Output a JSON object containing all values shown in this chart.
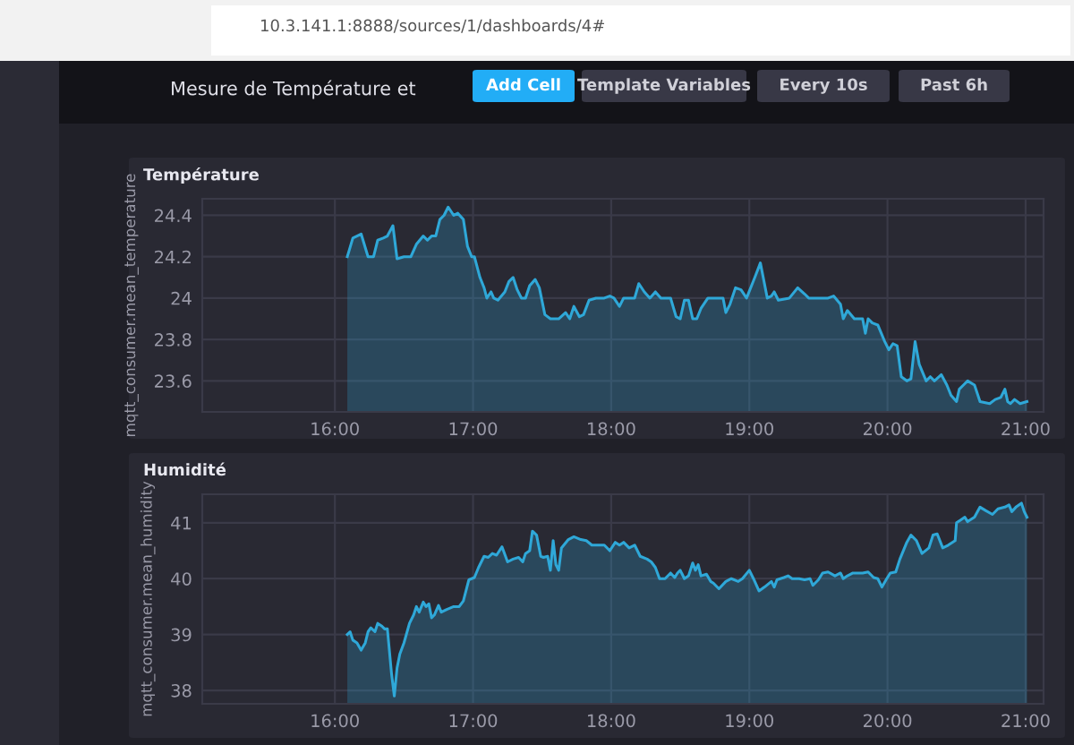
{
  "chart_data": [
    {
      "type": "other",
      "title": "Mesure de Température et",
      "annotations": [
        "10.3.141.1:8888/sources/1/dashboards/4#",
        "Add Cell",
        "Template Variables",
        "Every 10s",
        "Past 6h"
      ]
    },
    {
      "type": "area",
      "title": "Température",
      "ylabel": "mqtt_consumer.mean_temperature",
      "xlim": [
        15.04,
        21.13
      ],
      "ylim": [
        23.45,
        24.48
      ],
      "xticks": [
        {
          "value": 16,
          "label": "16:00"
        },
        {
          "value": 17,
          "label": "17:00"
        },
        {
          "value": 18,
          "label": "18:00"
        },
        {
          "value": 19,
          "label": "19:00"
        },
        {
          "value": 20,
          "label": "20:00"
        },
        {
          "value": 21,
          "label": "21:00"
        }
      ],
      "yticks": [
        23.6,
        23.8,
        24,
        24.2,
        24.4
      ],
      "grid": true,
      "legend": false,
      "marker": "none",
      "line_style": "solid",
      "series": [
        {
          "color": "#2fa8d8",
          "x": [
            16.09,
            16.13,
            16.16,
            16.19,
            16.24,
            16.28,
            16.31,
            16.35,
            16.38,
            16.42,
            16.45,
            16.5,
            16.55,
            16.59,
            16.64,
            16.67,
            16.7,
            16.73,
            16.76,
            16.79,
            16.82,
            16.86,
            16.89,
            16.93,
            16.96,
            16.99,
            17.01,
            17.05,
            17.08,
            17.1,
            17.13,
            17.15,
            17.18,
            17.23,
            17.26,
            17.29,
            17.32,
            17.35,
            17.38,
            17.41,
            17.45,
            17.48,
            17.52,
            17.56,
            17.62,
            17.67,
            17.7,
            17.73,
            17.77,
            17.8,
            17.84,
            17.89,
            17.95,
            17.99,
            18.02,
            18.06,
            18.09,
            18.17,
            18.2,
            18.24,
            18.28,
            18.32,
            18.36,
            18.43,
            18.47,
            18.5,
            18.53,
            18.56,
            18.59,
            18.62,
            18.65,
            18.7,
            18.81,
            18.83,
            18.86,
            18.9,
            18.94,
            18.98,
            19.04,
            19.08,
            19.13,
            19.16,
            19.18,
            19.21,
            19.29,
            19.35,
            19.4,
            19.43,
            19.57,
            19.61,
            19.66,
            19.68,
            19.71,
            19.76,
            19.82,
            19.84,
            19.86,
            19.89,
            19.93,
            19.98,
            20.01,
            20.04,
            20.07,
            20.1,
            20.14,
            20.17,
            20.2,
            20.23,
            20.28,
            20.31,
            20.34,
            20.39,
            20.43,
            20.46,
            20.5,
            20.52,
            20.55,
            20.58,
            20.63,
            20.67,
            20.74,
            20.78,
            20.82,
            20.85,
            20.87,
            20.89,
            20.92,
            20.96,
            21.01
          ],
          "values": [
            24.2,
            24.29,
            24.3,
            24.31,
            24.2,
            24.2,
            24.28,
            24.29,
            24.3,
            24.35,
            24.19,
            24.2,
            24.2,
            24.26,
            24.3,
            24.28,
            24.3,
            24.3,
            24.38,
            24.4,
            24.44,
            24.4,
            24.41,
            24.38,
            24.25,
            24.2,
            24.2,
            24.1,
            24.05,
            24.0,
            24.03,
            24.0,
            23.99,
            24.03,
            24.08,
            24.1,
            24.04,
            24.0,
            24.0,
            24.06,
            24.09,
            24.05,
            23.92,
            23.9,
            23.9,
            23.93,
            23.9,
            23.96,
            23.91,
            23.92,
            23.99,
            24.0,
            24.0,
            24.01,
            24.0,
            23.96,
            24.0,
            24.0,
            24.07,
            24.03,
            24.0,
            24.03,
            24.0,
            24.0,
            23.91,
            23.9,
            23.99,
            23.99,
            23.9,
            23.9,
            23.95,
            24.0,
            24.0,
            23.93,
            23.97,
            24.05,
            24.04,
            24.0,
            24.1,
            24.17,
            24.0,
            24.01,
            24.03,
            23.99,
            24.0,
            24.05,
            24.02,
            24.0,
            24.0,
            24.01,
            23.97,
            23.9,
            23.94,
            23.9,
            23.9,
            23.83,
            23.9,
            23.88,
            23.87,
            23.79,
            23.75,
            23.78,
            23.77,
            23.62,
            23.6,
            23.61,
            23.79,
            23.68,
            23.6,
            23.62,
            23.6,
            23.63,
            23.58,
            23.53,
            23.5,
            23.56,
            23.58,
            23.6,
            23.58,
            23.5,
            23.49,
            23.51,
            23.52,
            23.56,
            23.5,
            23.49,
            23.51,
            23.49,
            23.5
          ]
        }
      ]
    },
    {
      "type": "area",
      "title": "Humidité",
      "ylabel": "mqtt_consumer.mean_humidity",
      "xlim": [
        15.04,
        21.13
      ],
      "ylim": [
        37.76,
        41.51
      ],
      "xticks": [
        {
          "value": 16,
          "label": "16:00"
        },
        {
          "value": 17,
          "label": "17:00"
        },
        {
          "value": 18,
          "label": "18:00"
        },
        {
          "value": 19,
          "label": "19:00"
        },
        {
          "value": 20,
          "label": "20:00"
        },
        {
          "value": 21,
          "label": "21:00"
        }
      ],
      "yticks": [
        38,
        39,
        40,
        41
      ],
      "grid": true,
      "legend": false,
      "marker": "none",
      "line_style": "solid",
      "series": [
        {
          "color": "#2fa8d8",
          "x": [
            16.09,
            16.11,
            16.13,
            16.16,
            16.19,
            16.22,
            16.24,
            16.26,
            16.29,
            16.31,
            16.34,
            16.36,
            16.38,
            16.41,
            16.43,
            16.45,
            16.47,
            16.5,
            16.54,
            16.57,
            16.59,
            16.61,
            16.64,
            16.66,
            16.68,
            16.7,
            16.72,
            16.75,
            16.77,
            16.81,
            16.86,
            16.9,
            16.93,
            16.97,
            17.01,
            17.04,
            17.08,
            17.11,
            17.14,
            17.17,
            17.21,
            17.25,
            17.29,
            17.33,
            17.36,
            17.38,
            17.41,
            17.43,
            17.46,
            17.49,
            17.51,
            17.54,
            17.56,
            17.58,
            17.6,
            17.62,
            17.64,
            17.69,
            17.73,
            17.78,
            17.82,
            17.86,
            17.91,
            17.95,
            17.99,
            18.03,
            18.06,
            18.09,
            18.13,
            18.17,
            18.21,
            18.26,
            18.29,
            18.32,
            18.35,
            18.39,
            18.43,
            18.46,
            18.48,
            18.5,
            18.53,
            18.56,
            18.59,
            18.61,
            18.63,
            18.65,
            18.69,
            18.72,
            18.74,
            18.78,
            18.83,
            18.87,
            18.92,
            18.95,
            19.0,
            19.03,
            19.07,
            19.11,
            19.16,
            19.18,
            19.2,
            19.25,
            19.28,
            19.31,
            19.36,
            19.4,
            19.44,
            19.46,
            19.5,
            19.53,
            19.57,
            19.62,
            19.66,
            19.68,
            19.71,
            19.75,
            19.82,
            19.86,
            19.9,
            19.93,
            19.96,
            19.99,
            20.02,
            20.06,
            20.09,
            20.14,
            20.17,
            20.21,
            20.25,
            20.3,
            20.33,
            20.36,
            20.4,
            20.44,
            20.49,
            20.5,
            20.53,
            20.56,
            20.58,
            20.63,
            20.67,
            20.71,
            20.76,
            20.8,
            20.85,
            20.88,
            20.9,
            20.93,
            20.97,
            20.99,
            21.01
          ],
          "values": [
            39.0,
            39.05,
            38.9,
            38.85,
            38.72,
            38.85,
            39.05,
            39.12,
            39.05,
            39.2,
            39.15,
            39.1,
            39.1,
            38.3,
            37.9,
            38.4,
            38.65,
            38.85,
            39.2,
            39.35,
            39.5,
            39.4,
            39.58,
            39.5,
            39.55,
            39.3,
            39.35,
            39.52,
            39.4,
            39.45,
            39.5,
            39.5,
            39.6,
            39.98,
            40.02,
            40.2,
            40.4,
            40.38,
            40.45,
            40.42,
            40.57,
            40.3,
            40.35,
            40.38,
            40.3,
            40.45,
            40.5,
            40.85,
            40.78,
            40.4,
            40.38,
            40.4,
            40.15,
            40.68,
            40.25,
            40.15,
            40.55,
            40.7,
            40.75,
            40.7,
            40.68,
            40.6,
            40.6,
            40.6,
            40.5,
            40.65,
            40.6,
            40.65,
            40.55,
            40.6,
            40.4,
            40.35,
            40.3,
            40.2,
            40.0,
            40.0,
            40.1,
            40.02,
            40.1,
            40.15,
            40.0,
            40.05,
            40.28,
            40.15,
            40.25,
            40.05,
            40.08,
            39.95,
            39.92,
            39.82,
            39.95,
            40.0,
            39.95,
            40.0,
            40.15,
            40.0,
            39.78,
            39.85,
            39.95,
            39.85,
            39.98,
            40.02,
            40.05,
            40.0,
            40.0,
            39.98,
            40.0,
            39.88,
            39.98,
            40.1,
            40.12,
            40.05,
            40.1,
            40.0,
            40.05,
            40.1,
            40.1,
            40.12,
            40.02,
            40.0,
            39.85,
            39.98,
            40.1,
            40.12,
            40.35,
            40.65,
            40.78,
            40.68,
            40.45,
            40.55,
            40.78,
            40.8,
            40.55,
            40.6,
            40.68,
            41.0,
            41.05,
            41.1,
            41.02,
            41.1,
            41.28,
            41.22,
            41.15,
            41.25,
            41.28,
            41.32,
            41.2,
            41.28,
            41.35,
            41.2,
            41.1
          ]
        }
      ]
    }
  ]
}
